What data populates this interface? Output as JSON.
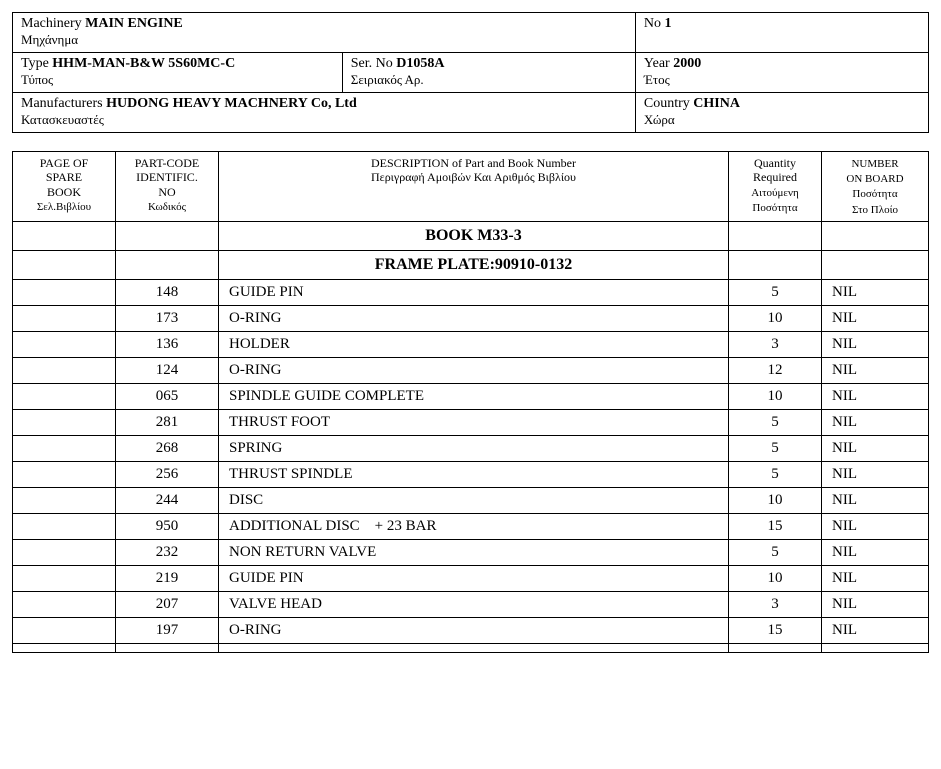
{
  "header": {
    "machinery_label": "Machinery",
    "machinery_value": "MAIN ENGINE",
    "machinery_greek": "Μηχάνημα",
    "no_label": "No",
    "no_value": "1",
    "type_label": "Type",
    "type_value": "HHM-MAN-B&W 5S60MC-C",
    "type_greek": "Τύπος",
    "serno_label": "Ser. No",
    "serno_value": "D1058A",
    "serno_greek": "Σειριακός Αρ.",
    "year_label": "Year",
    "year_value": "2000",
    "year_greek": "Έτος",
    "manuf_label": "Manufacturers",
    "manuf_value": "HUDONG HEAVY MACHNERY Co, Ltd",
    "manuf_greek": "Κατασκευαστές",
    "country_label": "Country",
    "country_value": "CHINA",
    "country_greek": "Χώρα"
  },
  "columns": {
    "page": {
      "line1": "PAGE OF",
      "line2": "SPARE",
      "line3": "BOOK",
      "greek": "Σελ.Βιβλίου"
    },
    "code": {
      "line1": "PART-CODE",
      "line2": "IDENTIFIC.",
      "line3": "NO",
      "greek": "Κωδικός"
    },
    "desc": {
      "line1": "DESCRIPTION of Part and Book Number",
      "greek": "Περιγραφή Αμοιβών Και Αριθμός Βιβλίου"
    },
    "qty": {
      "line1": "Quantity",
      "line2": "Required",
      "greek1": "Αιτούμενη",
      "greek2": "Ποσότητα"
    },
    "board": {
      "line1": "NUMBER",
      "line2": "ON BOARD",
      "greek1": "Ποσότητα",
      "greek2": "Στο Πλοίο"
    }
  },
  "sections": [
    {
      "title": "BOOK M33-3"
    },
    {
      "title": "FRAME PLATE:90910-0132"
    }
  ],
  "rows": [
    {
      "page": "",
      "code": "148",
      "desc": "GUIDE PIN",
      "qty": "5",
      "board": "NIL"
    },
    {
      "page": "",
      "code": "173",
      "desc": "O-RING",
      "qty": "10",
      "board": "NIL"
    },
    {
      "page": "",
      "code": "136",
      "desc": "HOLDER",
      "qty": "3",
      "board": "NIL"
    },
    {
      "page": "",
      "code": "124",
      "desc": "O-RING",
      "qty": "12",
      "board": "NIL"
    },
    {
      "page": "",
      "code": "065",
      "desc": "SPINDLE GUIDE COMPLETE",
      "qty": "10",
      "board": "NIL"
    },
    {
      "page": "",
      "code": "281",
      "desc": "THRUST FOOT",
      "qty": "5",
      "board": "NIL"
    },
    {
      "page": "",
      "code": "268",
      "desc": "SPRING",
      "qty": "5",
      "board": "NIL"
    },
    {
      "page": "",
      "code": "256",
      "desc": "THRUST SPINDLE",
      "qty": "5",
      "board": "NIL"
    },
    {
      "page": "",
      "code": "244",
      "desc": "DISC",
      "qty": "10",
      "board": "NIL"
    },
    {
      "page": "",
      "code": "950",
      "desc": "ADDITIONAL DISC    + 23 BAR",
      "qty": "15",
      "board": "NIL"
    },
    {
      "page": "",
      "code": "232",
      "desc": "NON RETURN VALVE",
      "qty": "5",
      "board": "NIL"
    },
    {
      "page": "",
      "code": "219",
      "desc": "GUIDE PIN",
      "qty": "10",
      "board": "NIL"
    },
    {
      "page": "",
      "code": "207",
      "desc": "VALVE HEAD",
      "qty": "3",
      "board": "NIL"
    },
    {
      "page": "",
      "code": "197",
      "desc": "O-RING",
      "qty": "15",
      "board": "NIL"
    },
    {
      "page": "",
      "code": "",
      "desc": "",
      "qty": "",
      "board": ""
    }
  ]
}
